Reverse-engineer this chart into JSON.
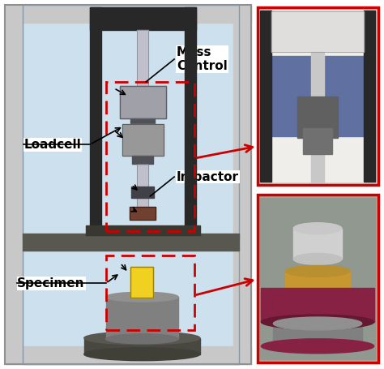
{
  "bg_color": "#ffffff",
  "frame_bg": "#c8dce8",
  "frame_outline": "#8090a0",
  "outer_wall_color": "#b0bec8",
  "inner_bg": "#d8eaf4",
  "dark_col": "#282828",
  "dark_plate": "#383838",
  "rod_color": "#b8b8c8",
  "rod_outline": "#888890",
  "lc_color": "#a8a8b0",
  "lc_dark": "#606068",
  "collar_color": "#606068",
  "tip_color": "#704030",
  "base_plate_color": "#484840",
  "ped_color": "#909090",
  "ped_outline": "#606060",
  "disk_color": "#606060",
  "disk_outline": "#404040",
  "yellow": "#f0d020",
  "yellow_outline": "#a08000",
  "red_dashed": "#cc0000",
  "label_white_bg": "#ffffff",
  "labels": {
    "loadcell": "Loadcell",
    "mass_control": "Mass\nControl",
    "impactor": "Impactor",
    "specimen": "Specimen"
  }
}
